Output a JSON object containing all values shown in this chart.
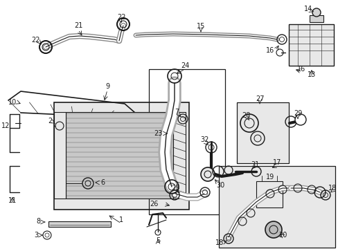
{
  "bg_color": "#ffffff",
  "line_color": "#1a1a1a",
  "fig_width": 4.89,
  "fig_height": 3.6,
  "dpi": 100,
  "gray_fill": "#d4d4d4",
  "light_gray": "#e8e8e8"
}
